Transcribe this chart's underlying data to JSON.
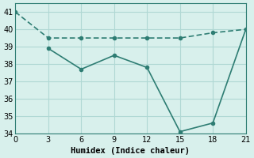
{
  "line1_x": [
    0,
    3,
    6,
    9,
    12,
    15,
    18,
    21
  ],
  "line1_y": [
    41,
    39.5,
    39.5,
    39.5,
    39.5,
    39.5,
    39.8,
    40
  ],
  "line2_x": [
    3,
    6,
    9,
    12,
    15,
    18,
    21
  ],
  "line2_y": [
    38.9,
    37.7,
    38.5,
    37.8,
    34.1,
    34.6,
    40.0
  ],
  "line_color": "#2e7d73",
  "bg_color": "#d8f0ec",
  "grid_color": "#b0d8d4",
  "xlabel": "Humidex (Indice chaleur)",
  "xlim": [
    0,
    21
  ],
  "ylim": [
    34,
    41.5
  ],
  "xticks": [
    0,
    3,
    6,
    9,
    12,
    15,
    18,
    21
  ],
  "yticks": [
    34,
    35,
    36,
    37,
    38,
    39,
    40,
    41
  ],
  "marker": "o",
  "markersize": 3,
  "linewidth": 1.2
}
